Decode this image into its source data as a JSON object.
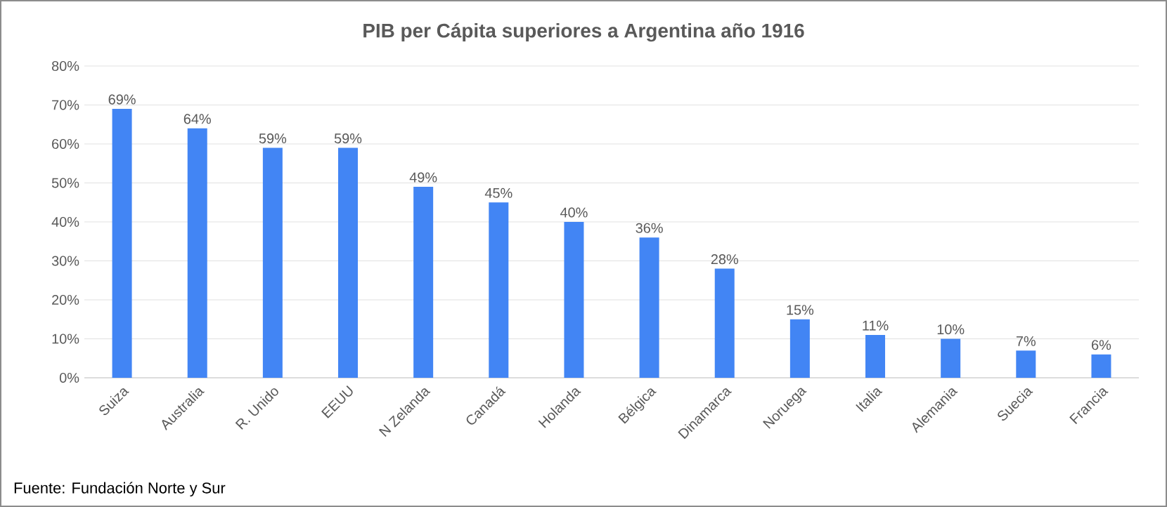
{
  "chart_data": {
    "type": "bar",
    "title": "PIB per Cápita superiores a Argentina año 1916",
    "categories": [
      "Suiza",
      "Australia",
      "R. Unido",
      "EEUU",
      "N Zelanda",
      "Canadá",
      "Holanda",
      "Bélgica",
      "Dinamarca",
      "Noruega",
      "Italia",
      "Alemania",
      "Suecia",
      "Francia"
    ],
    "values": [
      69,
      64,
      59,
      59,
      49,
      45,
      40,
      36,
      28,
      15,
      11,
      10,
      7,
      6
    ],
    "value_labels": [
      "69%",
      "64%",
      "59%",
      "59%",
      "49%",
      "45%",
      "40%",
      "36%",
      "28%",
      "15%",
      "11%",
      "10%",
      "7%",
      "6%"
    ],
    "color": "#4285f4",
    "ylim": [
      0,
      80
    ],
    "yticks": [
      {
        "value": 0,
        "label": "0%"
      },
      {
        "value": 10,
        "label": "10%"
      },
      {
        "value": 20,
        "label": "20%"
      },
      {
        "value": 30,
        "label": "30%"
      },
      {
        "value": 40,
        "label": "40%"
      },
      {
        "value": 50,
        "label": "50%"
      },
      {
        "value": 60,
        "label": "60%"
      },
      {
        "value": 70,
        "label": "70%"
      },
      {
        "value": 80,
        "label": "80%"
      }
    ],
    "grid": "y",
    "annotations": [
      "Fuente: Fundación Norte y Sur"
    ]
  }
}
